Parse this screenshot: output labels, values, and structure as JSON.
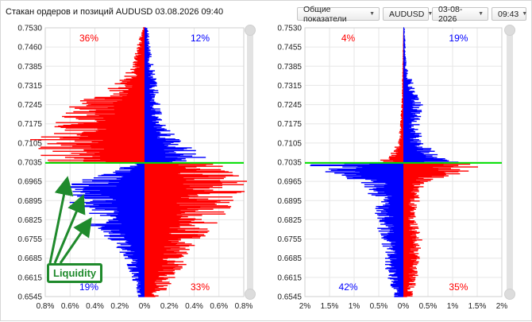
{
  "window": {
    "title": "Стакан ордеров и позиций AUDUSD 03.08.2026 09:40"
  },
  "toolbar": {
    "indicator": "Общие показатели",
    "symbol": "AUDUSD",
    "date": "03-08-2026",
    "time": "09:43"
  },
  "annotation": {
    "label": "Liquidity",
    "color": "#1f8a2c"
  },
  "colors": {
    "buy": "#ff0000",
    "sell": "#0000ff",
    "price_line": "#00e000",
    "grid": "#e6e6e6"
  },
  "chart_data": [
    {
      "type": "bar",
      "orientation": "horizontal",
      "name": "order-book",
      "y_ticks": [
        "0.7530",
        "0.7460",
        "0.7385",
        "0.7315",
        "0.7245",
        "0.7175",
        "0.7105",
        "0.7035",
        "0.6965",
        "0.6895",
        "0.6825",
        "0.6755",
        "0.6685",
        "0.6615",
        "0.6545"
      ],
      "x_ticks": [
        "0.8%",
        "0.6%",
        "0.4%",
        "0.2%",
        "0%",
        "0.2%",
        "0.4%",
        "0.6%",
        "0.8%"
      ],
      "xlim": [
        -0.8,
        0.8
      ],
      "ylim": [
        0.6545,
        0.753
      ],
      "current_price": 0.7035,
      "corner_labels": {
        "top_left": "36%",
        "top_right": "12%",
        "bottom_left": "19%",
        "bottom_right": "33%"
      },
      "series": [
        {
          "color": "#ff0000",
          "side": "left",
          "from": 0.7035,
          "to": 0.753,
          "profile": [
            [
              0.753,
              0.01
            ],
            [
              0.746,
              0.05
            ],
            [
              0.7385,
              0.08
            ],
            [
              0.7315,
              0.2
            ],
            [
              0.7245,
              0.45
            ],
            [
              0.7175,
              0.55
            ],
            [
              0.7105,
              0.72
            ],
            [
              0.7035,
              0.6
            ]
          ]
        },
        {
          "color": "#0000ff",
          "side": "right",
          "from": 0.7035,
          "to": 0.753,
          "profile": [
            [
              0.753,
              0.02
            ],
            [
              0.746,
              0.04
            ],
            [
              0.7385,
              0.06
            ],
            [
              0.7315,
              0.08
            ],
            [
              0.7245,
              0.1
            ],
            [
              0.7175,
              0.13
            ],
            [
              0.7105,
              0.25
            ],
            [
              0.7035,
              0.42
            ]
          ]
        },
        {
          "color": "#0000ff",
          "side": "left",
          "from": 0.6545,
          "to": 0.7035,
          "profile": [
            [
              0.7035,
              0.05
            ],
            [
              0.6965,
              0.45
            ],
            [
              0.6895,
              0.5
            ],
            [
              0.6825,
              0.4
            ],
            [
              0.6755,
              0.22
            ],
            [
              0.6685,
              0.12
            ],
            [
              0.6615,
              0.08
            ],
            [
              0.6545,
              0.04
            ]
          ]
        },
        {
          "color": "#ff0000",
          "side": "right",
          "from": 0.6545,
          "to": 0.7035,
          "profile": [
            [
              0.7035,
              0.5
            ],
            [
              0.6965,
              0.65
            ],
            [
              0.6895,
              0.58
            ],
            [
              0.6825,
              0.45
            ],
            [
              0.6755,
              0.35
            ],
            [
              0.6685,
              0.28
            ],
            [
              0.6615,
              0.2
            ],
            [
              0.6545,
              0.1
            ]
          ]
        }
      ]
    },
    {
      "type": "bar",
      "orientation": "horizontal",
      "name": "positions",
      "y_ticks": [
        "0.7530",
        "0.7455",
        "0.7385",
        "0.7315",
        "0.7245",
        "0.7175",
        "0.7105",
        "0.7035",
        "0.6965",
        "0.6895",
        "0.6825",
        "0.6755",
        "0.6685",
        "0.6615",
        "0.6545"
      ],
      "x_ticks": [
        "2%",
        "1.5%",
        "1%",
        "0.5%",
        "0%",
        "0.5%",
        "1%",
        "1.5%",
        "2%"
      ],
      "xlim": [
        -2,
        2
      ],
      "ylim": [
        0.6545,
        0.753
      ],
      "current_price": 0.7035,
      "corner_labels": {
        "top_left": "4%",
        "top_right": "19%",
        "bottom_left": "42%",
        "bottom_right": "35%"
      },
      "series": [
        {
          "color": "#ff0000",
          "side": "left",
          "from": 0.7035,
          "to": 0.753,
          "profile": [
            [
              0.753,
              0.0
            ],
            [
              0.7245,
              0.03
            ],
            [
              0.7105,
              0.08
            ],
            [
              0.7035,
              0.4
            ]
          ]
        },
        {
          "color": "#0000ff",
          "side": "right",
          "from": 0.7035,
          "to": 0.753,
          "profile": [
            [
              0.753,
              0.02
            ],
            [
              0.7385,
              0.05
            ],
            [
              0.7245,
              0.3
            ],
            [
              0.7175,
              0.25
            ],
            [
              0.7105,
              0.3
            ],
            [
              0.7035,
              0.95
            ]
          ]
        },
        {
          "color": "#0000ff",
          "side": "left",
          "from": 0.6545,
          "to": 0.7035,
          "profile": [
            [
              0.7035,
              1.6
            ],
            [
              0.6965,
              0.7
            ],
            [
              0.6895,
              0.45
            ],
            [
              0.6825,
              0.45
            ],
            [
              0.6755,
              0.35
            ],
            [
              0.6685,
              0.3
            ],
            [
              0.6615,
              0.25
            ],
            [
              0.6545,
              0.15
            ]
          ]
        },
        {
          "color": "#ff0000",
          "side": "right",
          "from": 0.6545,
          "to": 0.7035,
          "profile": [
            [
              0.7035,
              1.6
            ],
            [
              0.6965,
              0.35
            ],
            [
              0.6895,
              0.25
            ],
            [
              0.6825,
              0.2
            ],
            [
              0.6755,
              0.3
            ],
            [
              0.6685,
              0.25
            ],
            [
              0.6615,
              0.22
            ],
            [
              0.6545,
              0.15
            ]
          ]
        }
      ]
    }
  ]
}
